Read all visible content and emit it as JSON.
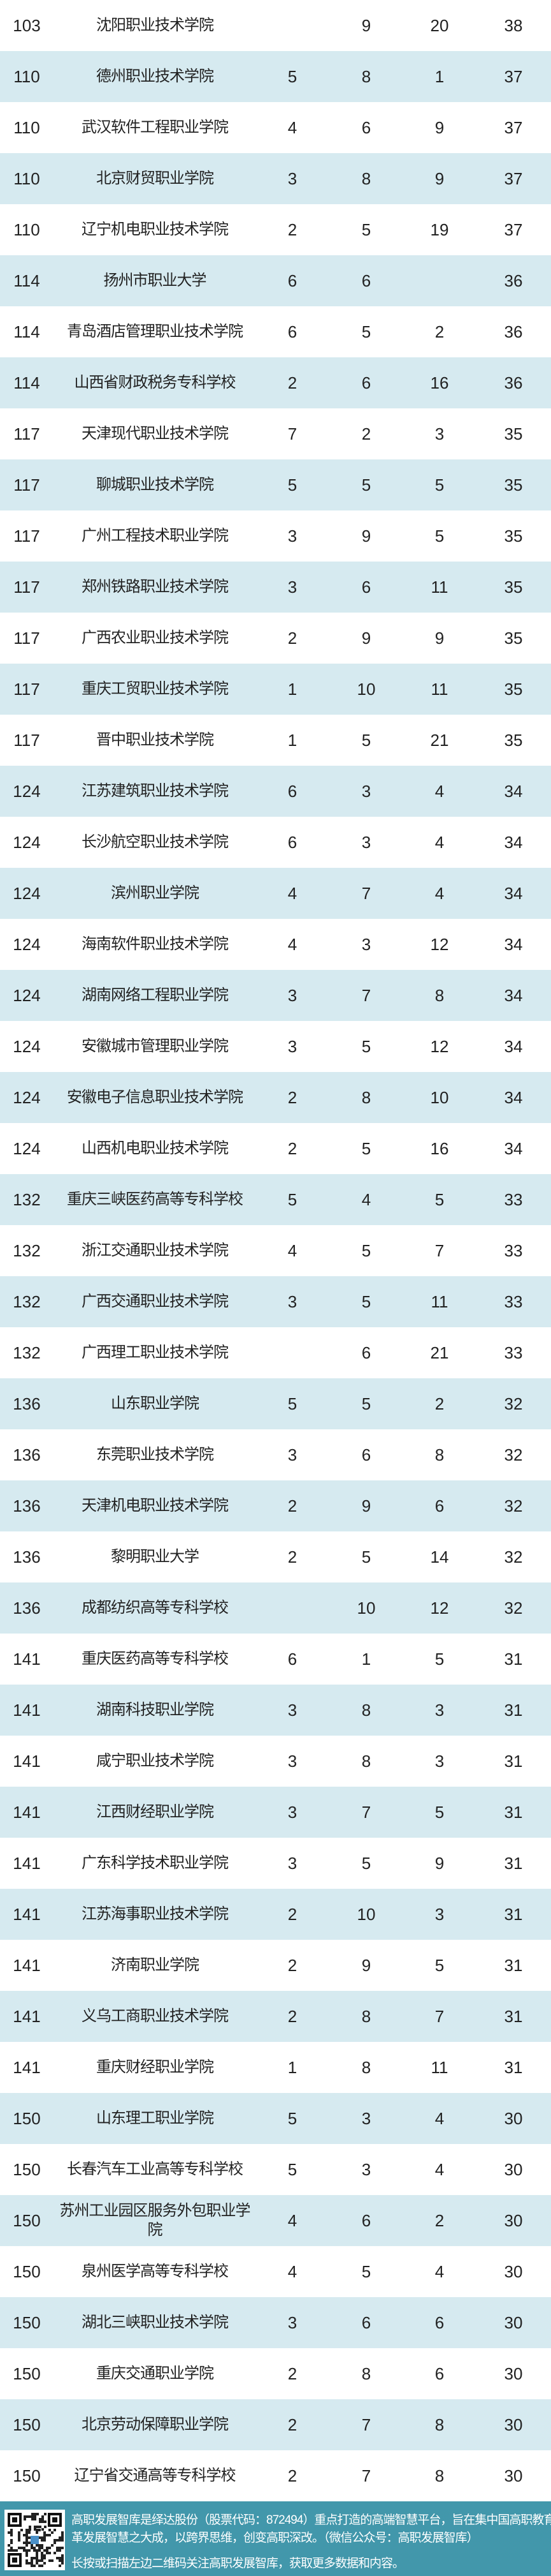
{
  "rows": [
    [
      "103",
      "沈阳职业技术学院",
      "",
      "9",
      "20",
      "38"
    ],
    [
      "110",
      "德州职业技术学院",
      "5",
      "8",
      "1",
      "37"
    ],
    [
      "110",
      "武汉软件工程职业学院",
      "4",
      "6",
      "9",
      "37"
    ],
    [
      "110",
      "北京财贸职业学院",
      "3",
      "8",
      "9",
      "37"
    ],
    [
      "110",
      "辽宁机电职业技术学院",
      "2",
      "5",
      "19",
      "37"
    ],
    [
      "114",
      "扬州市职业大学",
      "6",
      "6",
      "",
      "36"
    ],
    [
      "114",
      "青岛酒店管理职业技术学院",
      "6",
      "5",
      "2",
      "36"
    ],
    [
      "114",
      "山西省财政税务专科学校",
      "2",
      "6",
      "16",
      "36"
    ],
    [
      "117",
      "天津现代职业技术学院",
      "7",
      "2",
      "3",
      "35"
    ],
    [
      "117",
      "聊城职业技术学院",
      "5",
      "5",
      "5",
      "35"
    ],
    [
      "117",
      "广州工程技术职业学院",
      "3",
      "9",
      "5",
      "35"
    ],
    [
      "117",
      "郑州铁路职业技术学院",
      "3",
      "6",
      "11",
      "35"
    ],
    [
      "117",
      "广西农业职业技术学院",
      "2",
      "9",
      "9",
      "35"
    ],
    [
      "117",
      "重庆工贸职业技术学院",
      "1",
      "10",
      "11",
      "35"
    ],
    [
      "117",
      "晋中职业技术学院",
      "1",
      "5",
      "21",
      "35"
    ],
    [
      "124",
      "江苏建筑职业技术学院",
      "6",
      "3",
      "4",
      "34"
    ],
    [
      "124",
      "长沙航空职业技术学院",
      "6",
      "3",
      "4",
      "34"
    ],
    [
      "124",
      "滨州职业学院",
      "4",
      "7",
      "4",
      "34"
    ],
    [
      "124",
      "海南软件职业技术学院",
      "4",
      "3",
      "12",
      "34"
    ],
    [
      "124",
      "湖南网络工程职业学院",
      "3",
      "7",
      "8",
      "34"
    ],
    [
      "124",
      "安徽城市管理职业学院",
      "3",
      "5",
      "12",
      "34"
    ],
    [
      "124",
      "安徽电子信息职业技术学院",
      "2",
      "8",
      "10",
      "34"
    ],
    [
      "124",
      "山西机电职业技术学院",
      "2",
      "5",
      "16",
      "34"
    ],
    [
      "132",
      "重庆三峡医药高等专科学校",
      "5",
      "4",
      "5",
      "33"
    ],
    [
      "132",
      "浙江交通职业技术学院",
      "4",
      "5",
      "7",
      "33"
    ],
    [
      "132",
      "广西交通职业技术学院",
      "3",
      "5",
      "11",
      "33"
    ],
    [
      "132",
      "广西理工职业技术学院",
      "",
      "6",
      "21",
      "33"
    ],
    [
      "136",
      "山东职业学院",
      "5",
      "5",
      "2",
      "32"
    ],
    [
      "136",
      "东莞职业技术学院",
      "3",
      "6",
      "8",
      "32"
    ],
    [
      "136",
      "天津机电职业技术学院",
      "2",
      "9",
      "6",
      "32"
    ],
    [
      "136",
      "黎明职业大学",
      "2",
      "5",
      "14",
      "32"
    ],
    [
      "136",
      "成都纺织高等专科学校",
      "",
      "10",
      "12",
      "32"
    ],
    [
      "141",
      "重庆医药高等专科学校",
      "6",
      "1",
      "5",
      "31"
    ],
    [
      "141",
      "湖南科技职业学院",
      "3",
      "8",
      "3",
      "31"
    ],
    [
      "141",
      "咸宁职业技术学院",
      "3",
      "8",
      "3",
      "31"
    ],
    [
      "141",
      "江西财经职业学院",
      "3",
      "7",
      "5",
      "31"
    ],
    [
      "141",
      "广东科学技术职业学院",
      "3",
      "5",
      "9",
      "31"
    ],
    [
      "141",
      "江苏海事职业技术学院",
      "2",
      "10",
      "3",
      "31"
    ],
    [
      "141",
      "济南职业学院",
      "2",
      "9",
      "5",
      "31"
    ],
    [
      "141",
      "义乌工商职业技术学院",
      "2",
      "8",
      "7",
      "31"
    ],
    [
      "141",
      "重庆财经职业学院",
      "1",
      "8",
      "11",
      "31"
    ],
    [
      "150",
      "山东理工职业学院",
      "5",
      "3",
      "4",
      "30"
    ],
    [
      "150",
      "长春汽车工业高等专科学校",
      "5",
      "3",
      "4",
      "30"
    ],
    [
      "150",
      "苏州工业园区服务外包职业学院",
      "4",
      "6",
      "2",
      "30"
    ],
    [
      "150",
      "泉州医学高等专科学校",
      "4",
      "5",
      "4",
      "30"
    ],
    [
      "150",
      "湖北三峡职业技术学院",
      "3",
      "6",
      "6",
      "30"
    ],
    [
      "150",
      "重庆交通职业学院",
      "2",
      "8",
      "6",
      "30"
    ],
    [
      "150",
      "北京劳动保障职业学院",
      "2",
      "7",
      "8",
      "30"
    ],
    [
      "150",
      "辽宁省交通高等专科学校",
      "2",
      "7",
      "8",
      "30"
    ]
  ],
  "watermark": {
    "brand": "高职发展智库",
    "url": "www.zggzzk.com"
  },
  "footer": {
    "line1": "高职发展智库是绎达股份（股票代码：872494）重点打造的高端智慧平台，旨在集中国高职教育改",
    "line2": "革发展智慧之大成，以跨界思维，创变高职深改。（微信公众号：高职发展智库）",
    "line3": "长按或扫描左边二维码关注高职发展智库，获取更多数据和内容。",
    "qr_icon": "qr-code-icon"
  },
  "colors": {
    "row_alt": "#d6eaf0",
    "footer_bg": "#4297ab",
    "text": "#222222"
  }
}
